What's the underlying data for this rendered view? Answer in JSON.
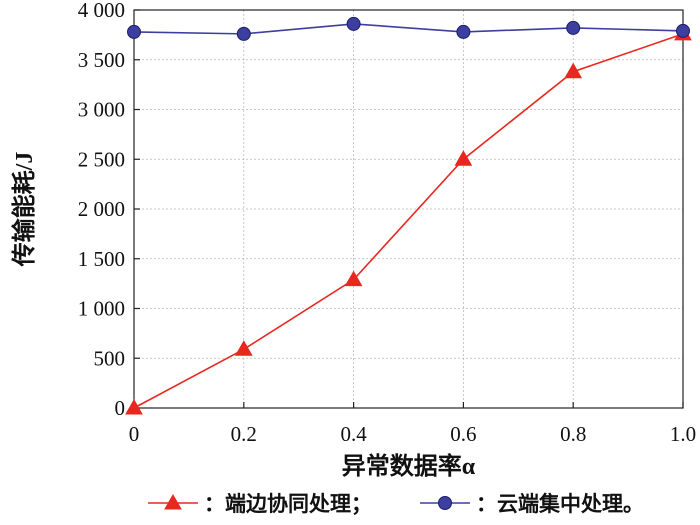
{
  "chart_data": {
    "type": "line",
    "xlabel": "异常数据率α",
    "ylabel": "传输能耗/J",
    "x": [
      0,
      0.2,
      0.4,
      0.6,
      0.8,
      1.0
    ],
    "x_tick_labels": [
      "0",
      "0.2",
      "0.4",
      "0.6",
      "0.8",
      "1.0"
    ],
    "xlim": [
      0,
      1.0
    ],
    "ylim": [
      0,
      4000
    ],
    "y_ticks": [
      0,
      500,
      1000,
      1500,
      2000,
      2500,
      3000,
      3500,
      4000
    ],
    "y_tick_labels": [
      "0",
      "500",
      "1 000",
      "1 500",
      "2 000",
      "2 500",
      "3 000",
      "3 500",
      "4 000"
    ],
    "grid": true,
    "legend_position": "bottom",
    "series": [
      {
        "name": "端边协同处理",
        "legend_text": "：端边协同处理；",
        "marker": "triangle",
        "color": "#e8281f",
        "values": [
          0,
          590,
          1290,
          2500,
          3380,
          3760
        ]
      },
      {
        "name": "云端集中处理",
        "legend_text": "：云端集中处理。",
        "marker": "circle",
        "color": "#3c3ea0",
        "values": [
          3780,
          3760,
          3860,
          3780,
          3820,
          3790
        ]
      }
    ]
  }
}
